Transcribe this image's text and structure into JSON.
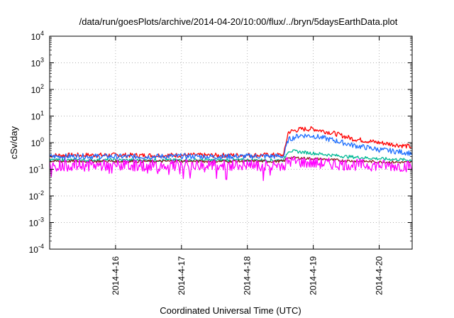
{
  "chart_data": {
    "type": "line",
    "title": "/data/run/goesPlots/archive/2014-04-20/10:00/flux/../bryn/5daysEarthData.plot",
    "xlabel": "Coordinated Universal Time (UTC)",
    "ylabel": "cSv/day",
    "yscale": "log",
    "ylim": [
      0.0001,
      10000
    ],
    "xlim": [
      0,
      5.5
    ],
    "x_origin": "2014-4-15 12:00",
    "x_unit": "days",
    "y_ticks": [
      {
        "base": "10",
        "exp": "-4"
      },
      {
        "base": "10",
        "exp": "-3"
      },
      {
        "base": "10",
        "exp": "-2"
      },
      {
        "base": "10",
        "exp": "-1"
      },
      {
        "base": "10",
        "exp": "0"
      },
      {
        "base": "10",
        "exp": "1"
      },
      {
        "base": "10",
        "exp": "2"
      },
      {
        "base": "10",
        "exp": "3"
      },
      {
        "base": "10",
        "exp": "4"
      }
    ],
    "x_ticks": [
      {
        "label": "2014-4-16",
        "x": 1.0
      },
      {
        "label": "2014-4-17",
        "x": 2.0
      },
      {
        "label": "2014-4-18",
        "x": 3.0
      },
      {
        "label": "2014-4-19",
        "x": 4.0
      },
      {
        "label": "2014-4-20",
        "x": 5.0
      }
    ],
    "grid": true,
    "legend": "none",
    "series": [
      {
        "color": "#ff0000",
        "x": [
          0,
          0.5,
          1,
          1.5,
          2,
          2.5,
          3,
          3.55,
          3.62,
          3.8,
          4.0,
          4.3,
          4.6,
          5.0,
          5.5
        ],
        "y": [
          0.33,
          0.34,
          0.34,
          0.33,
          0.34,
          0.33,
          0.34,
          0.34,
          2.5,
          3.2,
          3.3,
          2.3,
          1.4,
          1.0,
          0.7
        ]
      },
      {
        "color": "#1e6fff",
        "x": [
          0,
          0.5,
          1,
          1.5,
          2,
          2.5,
          3,
          3.55,
          3.62,
          3.8,
          4.0,
          4.3,
          4.6,
          5.0,
          5.5
        ],
        "y": [
          0.3,
          0.31,
          0.3,
          0.3,
          0.31,
          0.3,
          0.31,
          0.31,
          1.3,
          1.9,
          1.8,
          1.25,
          0.8,
          0.55,
          0.4
        ]
      },
      {
        "color": "#00b894",
        "x": [
          0,
          0.5,
          1,
          1.5,
          2,
          2.5,
          3,
          3.55,
          3.62,
          4.0,
          4.5,
          5.0,
          5.5
        ],
        "y": [
          0.22,
          0.22,
          0.22,
          0.22,
          0.22,
          0.22,
          0.22,
          0.22,
          0.5,
          0.4,
          0.3,
          0.25,
          0.22
        ]
      },
      {
        "color": "#8b1a1a",
        "x": [
          0,
          0.5,
          1,
          1.5,
          2,
          2.5,
          3,
          3.55,
          3.62,
          4.0,
          4.5,
          5.0,
          5.5
        ],
        "y": [
          0.2,
          0.2,
          0.2,
          0.2,
          0.2,
          0.2,
          0.2,
          0.2,
          0.28,
          0.25,
          0.21,
          0.19,
          0.18
        ]
      },
      {
        "color": "#ff00ff",
        "x": [
          0,
          0.5,
          1,
          1.5,
          2,
          2.5,
          3,
          3.55,
          3.62,
          4.0,
          4.5,
          5.0,
          5.5
        ],
        "y": [
          0.14,
          0.14,
          0.14,
          0.14,
          0.14,
          0.14,
          0.14,
          0.14,
          0.2,
          0.17,
          0.15,
          0.14,
          0.13
        ]
      }
    ]
  }
}
